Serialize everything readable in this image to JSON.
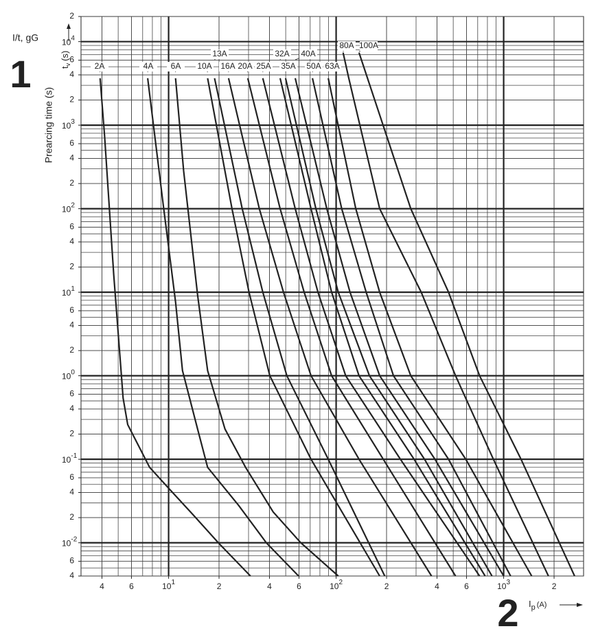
{
  "chart_data": {
    "type": "line",
    "title": "I/t, gG",
    "annotations": [
      "1",
      "2"
    ],
    "ylabel": "Prearcing time (s)",
    "y_symbol": {
      "text": "t",
      "sub": "v",
      "unit": "(s)"
    },
    "x_symbol": {
      "text": "I",
      "sub": "p",
      "unit": "(A)"
    },
    "log_x": true,
    "log_y": true,
    "grid": true,
    "xlim": [
      3,
      3000
    ],
    "ylim": [
      0.004,
      20000
    ],
    "xticks": [
      4,
      6,
      {
        "value": 10,
        "label": "10",
        "exponent": "1"
      },
      {
        "value": 20,
        "label": "2"
      },
      {
        "value": 40,
        "label": "4"
      },
      {
        "value": 60,
        "label": "6"
      },
      {
        "value": 100,
        "label": "10",
        "exponent": "2"
      },
      {
        "value": 200,
        "label": "2"
      },
      {
        "value": 400,
        "label": "4"
      },
      {
        "value": 600,
        "label": "6"
      },
      {
        "value": 1000,
        "label": "10",
        "exponent": "3"
      },
      {
        "value": 2000,
        "label": "2"
      }
    ],
    "yticks": [
      {
        "value": 20000,
        "label": "2"
      },
      {
        "value": 10000,
        "label": "10",
        "exponent": "4"
      },
      {
        "value": 6000,
        "label": "6"
      },
      {
        "value": 4000,
        "label": "4"
      },
      {
        "value": 2000,
        "label": "2"
      },
      {
        "value": 1000,
        "label": "10",
        "exponent": "3"
      },
      {
        "value": 600,
        "label": "6"
      },
      {
        "value": 400,
        "label": "4"
      },
      {
        "value": 200,
        "label": "2"
      },
      {
        "value": 100,
        "label": "10",
        "exponent": "2"
      },
      {
        "value": 60,
        "label": "6"
      },
      {
        "value": 40,
        "label": "4"
      },
      {
        "value": 20,
        "label": "2"
      },
      {
        "value": 10,
        "label": "10",
        "exponent": "1"
      },
      6,
      4,
      2,
      {
        "value": 1,
        "label": "10",
        "exponent": "0"
      },
      {
        "value": 0.6,
        "label": "6"
      },
      {
        "value": 0.4,
        "label": "4"
      },
      {
        "value": 0.2,
        "label": "2"
      },
      {
        "value": 0.1,
        "label": "10",
        "exponent": "-1"
      },
      {
        "value": 0.06,
        "label": "6"
      },
      {
        "value": 0.04,
        "label": "4"
      },
      {
        "value": 0.02,
        "label": "2"
      },
      {
        "value": 0.01,
        "label": "10",
        "exponent": "-2"
      },
      {
        "value": 0.006,
        "label": "6"
      },
      {
        "value": 0.004,
        "label": "4"
      }
    ],
    "series": [
      {
        "name": "2A",
        "color": "#222222",
        "x": [
          3.9,
          4.15,
          4.7,
          5.2,
          5.35,
          5.7,
          7.7,
          10,
          14.2,
          19.8,
          30.8
        ],
        "values": [
          3650,
          730,
          16.4,
          1.15,
          0.54,
          0.26,
          0.08,
          0.045,
          0.021,
          0.01,
          0.004
        ]
      },
      {
        "name": "4A",
        "color": "#222222",
        "x": [
          7.5,
          9.3,
          11,
          12.1,
          14.9,
          17.1,
          26.2,
          38.3,
          59.7
        ],
        "values": [
          3650,
          109,
          7.65,
          1.15,
          0.23,
          0.08,
          0.028,
          0.01,
          0.004
        ]
      },
      {
        "name": "6A",
        "color": "#222222",
        "x": [
          11,
          12.3,
          14.9,
          17.1,
          21.7,
          28.8,
          42.1,
          61.5,
          103
        ],
        "values": [
          3650,
          282,
          9.25,
          1.15,
          0.23,
          0.08,
          0.0234,
          0.01,
          0.004
        ]
      },
      {
        "name": "10A",
        "color": "#222222",
        "x": [
          17.1,
          23.9,
          30.2,
          40.2,
          70.8,
          182
        ],
        "values": [
          3650,
          100,
          10,
          1,
          0.1,
          0.004
        ]
      },
      {
        "name": "13A",
        "color": "#222222",
        "x": [
          18.8,
          27.5,
          36.5,
          50.8,
          89.7,
          195
        ],
        "values": [
          3650,
          100,
          10,
          1,
          0.1,
          0.004
        ]
      },
      {
        "name": "16A",
        "color": "#222222",
        "x": [
          22.8,
          34.8,
          48.5,
          70.8,
          137,
          371
        ],
        "values": [
          3650,
          100,
          10,
          1,
          0.1,
          0.004
        ]
      },
      {
        "name": "20A",
        "color": "#222222",
        "x": [
          29.7,
          46.3,
          64.4,
          94,
          191,
          516
        ],
        "values": [
          3650,
          100,
          10,
          1,
          0.1,
          0.004
        ]
      },
      {
        "name": "25A",
        "color": "#222222",
        "x": [
          36.5,
          57,
          77.9,
          114,
          242,
          718
        ],
        "values": [
          3650,
          100,
          10,
          1,
          0.1,
          0.004
        ]
      },
      {
        "name": "32A",
        "color": "#222222",
        "x": [
          46.3,
          70.8,
          94,
          137,
          292,
          775
        ],
        "values": [
          3650,
          100,
          10,
          1,
          0.1,
          0.004
        ]
      },
      {
        "name": "35A",
        "color": "#222222",
        "x": [
          49.9,
          75.7,
          103,
          158,
          337,
          852
        ],
        "values": [
          3650,
          100,
          10,
          1,
          0.1,
          0.004
        ]
      },
      {
        "name": "40A",
        "color": "#222222",
        "x": [
          57,
          88,
          121,
          182,
          389,
          1000
        ],
        "values": [
          3650,
          100,
          10,
          1,
          0.1,
          0.004
        ]
      },
      {
        "name": "50A",
        "color": "#222222",
        "x": [
          72.2,
          108,
          151,
          220,
          469,
          1100
        ],
        "values": [
          3650,
          100,
          10,
          1,
          0.1,
          0.004
        ]
      },
      {
        "name": "63A",
        "color": "#222222",
        "x": [
          89.7,
          131,
          182,
          279,
          594,
          1470
        ],
        "values": [
          3650,
          100,
          10,
          1,
          0.1,
          0.004
        ]
      },
      {
        "name": "80A",
        "color": "#222222",
        "x": [
          110,
          119,
          182,
          322,
          516,
          868,
          1850
        ],
        "values": [
          7400,
          3650,
          100,
          10,
          1,
          0.1,
          0.004
        ]
      },
      {
        "name": "100A",
        "color": "#222222",
        "x": [
          137,
          279,
          469,
          718,
          1270,
          2650
        ],
        "values": [
          7400,
          100,
          10,
          1,
          0.1,
          0.004
        ]
      }
    ]
  }
}
